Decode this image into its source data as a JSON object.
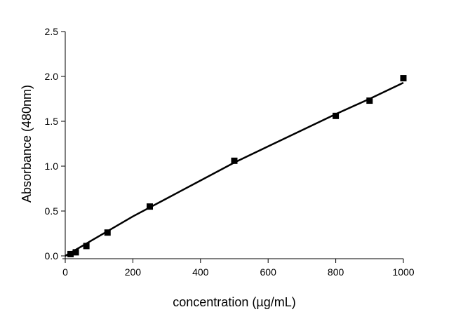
{
  "chart_data": {
    "type": "scatter",
    "title": "",
    "xlabel": "concentration (µg/mL)",
    "ylabel": "Absorbance (480nm)",
    "xlim": [
      0,
      1000
    ],
    "ylim": [
      0,
      2.5
    ],
    "x_ticks": [
      0,
      200,
      400,
      600,
      800,
      1000
    ],
    "y_ticks": [
      0.0,
      0.5,
      1.0,
      1.5,
      2.0,
      2.5
    ],
    "x_tick_labels": [
      "0",
      "200",
      "400",
      "600",
      "800",
      "1000"
    ],
    "y_tick_labels": [
      "0.0",
      "0.5",
      "1.0",
      "1.5",
      "2.0",
      "2.5"
    ],
    "grid": false,
    "legend": "none",
    "series": [
      {
        "marker": "square",
        "color": "#000000",
        "x": [
          15.6,
          31.25,
          62.5,
          125,
          250,
          500,
          800,
          900,
          1000
        ],
        "y": [
          0.02,
          0.04,
          0.11,
          0.26,
          0.55,
          1.06,
          1.56,
          1.73,
          1.98
        ]
      }
    ],
    "fit_line": {
      "color": "#000000",
      "x": [
        0,
        100,
        200,
        300,
        400,
        500,
        600,
        700,
        800,
        900,
        1000
      ],
      "y": [
        0.0,
        0.22,
        0.44,
        0.64,
        0.84,
        1.04,
        1.22,
        1.4,
        1.58,
        1.75,
        1.93
      ]
    }
  }
}
